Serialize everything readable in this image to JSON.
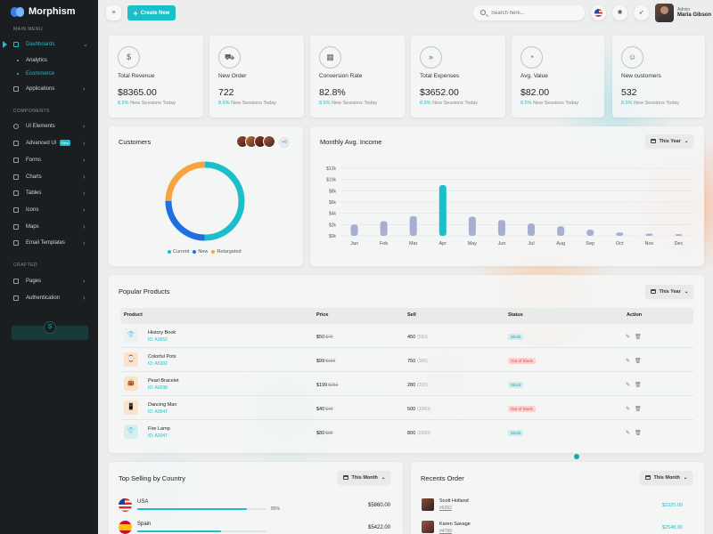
{
  "app": {
    "name": "Morphism"
  },
  "sidebar": {
    "section_main": "MAIN MENU",
    "section_components": "COMPONENTS",
    "section_crafted": "CRAFTED",
    "dashboards": "Dashboards",
    "analytics": "Analytics",
    "ecommerce": "Ecommerce",
    "applications": "Applications",
    "ui_elements": "UI Elements",
    "advanced_ui": "Advanced UI",
    "new_badge": "New",
    "forms": "Forms",
    "charts": "Charts",
    "tables": "Tables",
    "icons": "Icons",
    "maps": "Maps",
    "email_templates": "Email Templates",
    "pages": "Pages",
    "authentication": "Authentication"
  },
  "header": {
    "create_label": "Create New",
    "search_placeholder": "Search here...",
    "user_role": "Admin",
    "user_name": "Maria Gibson"
  },
  "stats": [
    {
      "label": "Total Revenue",
      "value": "$8365.00",
      "pct": "8.5%",
      "sub": "New Sessions Today",
      "icon": "money-bag-icon"
    },
    {
      "label": "New Order",
      "value": "722",
      "pct": "8.5%",
      "sub": "New Sessions Today",
      "icon": "cart-icon"
    },
    {
      "label": "Conversion Rate",
      "value": "82.8%",
      "pct": "8.5%",
      "sub": "New Sessions Today",
      "icon": "calculator-icon"
    },
    {
      "label": "Total Expenses",
      "value": "$3652.00",
      "pct": "8.5%",
      "sub": "New Sessions Today",
      "icon": "arrows-icon"
    },
    {
      "label": "Avg. Value",
      "value": "$82.00",
      "pct": "8.5%",
      "sub": "New Sessions Today",
      "icon": "gauge-icon"
    },
    {
      "label": "New customers",
      "value": "532",
      "pct": "8.5%",
      "sub": "New Sessions Today",
      "icon": "user-icon"
    }
  ],
  "customers": {
    "title": "Customers",
    "more": "+6",
    "legend": [
      "Current",
      "New",
      "Retargeted"
    ],
    "colors": [
      "#19c0c9",
      "#1f6fe0",
      "#f7a440"
    ]
  },
  "income": {
    "title": "Monthly Avg. Income",
    "filter": "This Year"
  },
  "chart_data": {
    "type": "bar",
    "title": "Monthly Avg. Income",
    "categories": [
      "Jan",
      "Feb",
      "Mar",
      "Apr",
      "May",
      "Jun",
      "Jul",
      "Aug",
      "Sep",
      "Oct",
      "Nov",
      "Dec"
    ],
    "values": [
      2000,
      2600,
      3500,
      9000,
      3400,
      2800,
      2200,
      1700,
      1100,
      600,
      400,
      300
    ],
    "highlight_index": 3,
    "yticks": [
      "$0k",
      "$2k",
      "$4k",
      "$6k",
      "$8k",
      "$10k",
      "$12k"
    ],
    "ylim": [
      0,
      12000
    ],
    "colors": {
      "bar": "#a8aed0",
      "highlight": "#19c0c9"
    }
  },
  "products": {
    "title": "Popular Products",
    "filter": "This Year",
    "headers": [
      "Product",
      "Price",
      "Sell",
      "Status",
      "Action"
    ],
    "rows": [
      {
        "name": "History Book",
        "id": "ID: A3652",
        "price": "$50",
        "old": "$70",
        "sell": "450",
        "sell_sub": "(550)",
        "status": "Stock",
        "in_stock": true,
        "icon": "shirt-icon",
        "glyph": "👕"
      },
      {
        "name": "Colorful Pots",
        "id": "ID: A5002",
        "price": "$99",
        "old": "$150",
        "sell": "750",
        "sell_sub": "(300)",
        "status": "Out of Stock",
        "in_stock": false,
        "icon": "watch-icon",
        "glyph": "⌚"
      },
      {
        "name": "Pearl Bracelet",
        "id": "ID: A6598",
        "price": "$199",
        "old": "$250",
        "sell": "280",
        "sell_sub": "(220)",
        "status": "Stock",
        "in_stock": true,
        "icon": "bag-icon",
        "glyph": "👜"
      },
      {
        "name": "Dancing Man",
        "id": "ID: A9547",
        "price": "$40",
        "old": "$49",
        "sell": "500",
        "sell_sub": "(1000)",
        "status": "Out of Stock",
        "in_stock": false,
        "icon": "phone-icon",
        "glyph": "📱"
      },
      {
        "name": "Fire Lamp",
        "id": "ID: A2047",
        "price": "$80",
        "old": "$99",
        "sell": "800",
        "sell_sub": "(2000)",
        "status": "Stock",
        "in_stock": true,
        "icon": "tshirt-icon",
        "glyph": "👕"
      }
    ]
  },
  "countries": {
    "title": "Top Selling by Country",
    "filter": "This Month",
    "rows": [
      {
        "name": "USA",
        "pct": "85%",
        "amount": "$5860.00",
        "fill": 0.85
      },
      {
        "name": "Spain",
        "pct": "",
        "amount": "$5422.00",
        "fill": 0.65
      }
    ]
  },
  "orders": {
    "title": "Recents Order",
    "filter": "This Month",
    "rows": [
      {
        "name": "Scott Holland",
        "id": "#6352",
        "amount": "$3325.00"
      },
      {
        "name": "Karen Savage",
        "id": "#4789",
        "amount": "$2548.00"
      }
    ]
  }
}
